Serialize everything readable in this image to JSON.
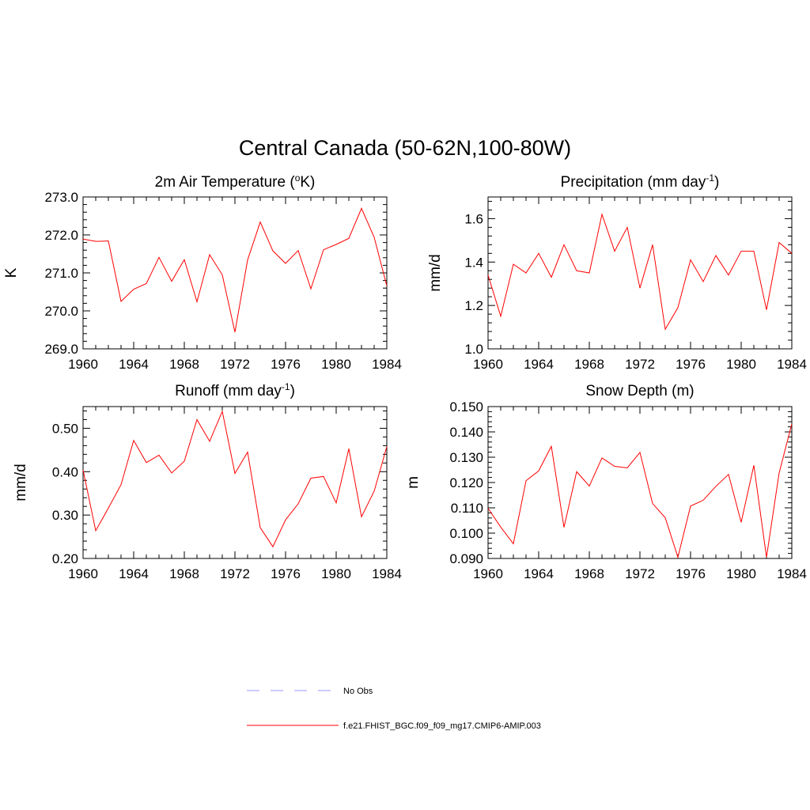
{
  "figure": {
    "title": "Central Canada (50-62N,100-80W)"
  },
  "chart_data": [
    {
      "type": "line",
      "title": "2m Air Temperature (",
      "title_sup": "o",
      "title_suffix": "K)",
      "ylabel": "K",
      "xlim": [
        1960,
        1984
      ],
      "ylim": [
        269.0,
        273.0
      ],
      "xticks": [
        "1960",
        "1964",
        "1968",
        "1972",
        "1976",
        "1980",
        "1984"
      ],
      "yticks": [
        "269.0",
        "270.0",
        "271.0",
        "272.0",
        "273.0"
      ],
      "grid": false,
      "series": [
        {
          "name": "f.e21.FHIST_BGC.f09_f09_mg17.CMIP6-AMIP.003",
          "color": "#ff0000",
          "x": [
            1960,
            1961,
            1962,
            1963,
            1964,
            1965,
            1966,
            1967,
            1968,
            1969,
            1970,
            1971,
            1972,
            1973,
            1974,
            1975,
            1976,
            1977,
            1978,
            1979,
            1980,
            1981,
            1982,
            1983,
            1984
          ],
          "y": [
            271.89,
            271.83,
            271.84,
            270.25,
            270.57,
            270.72,
            271.41,
            270.78,
            271.35,
            270.24,
            271.48,
            270.95,
            269.44,
            271.34,
            272.34,
            271.58,
            271.25,
            271.59,
            270.58,
            271.61,
            271.75,
            271.91,
            272.7,
            271.94,
            270.66
          ]
        }
      ]
    },
    {
      "type": "line",
      "title": "Precipitation (mm day",
      "title_sup": "-1",
      "title_suffix": ")",
      "ylabel": "mm/d",
      "xlim": [
        1960,
        1984
      ],
      "ylim": [
        1.0,
        1.7
      ],
      "xticks": [
        "1960",
        "1964",
        "1968",
        "1972",
        "1976",
        "1980",
        "1984"
      ],
      "yticks": [
        "1.0",
        "1.2",
        "1.4",
        "1.6"
      ],
      "grid": false,
      "series": [
        {
          "name": "f.e21.FHIST_BGC.f09_f09_mg17.CMIP6-AMIP.003",
          "color": "#ff0000",
          "x": [
            1960,
            1961,
            1962,
            1963,
            1964,
            1965,
            1966,
            1967,
            1968,
            1969,
            1970,
            1971,
            1972,
            1973,
            1974,
            1975,
            1976,
            1977,
            1978,
            1979,
            1980,
            1981,
            1982,
            1983,
            1984
          ],
          "y": [
            1.34,
            1.15,
            1.39,
            1.35,
            1.44,
            1.33,
            1.48,
            1.36,
            1.35,
            1.62,
            1.45,
            1.56,
            1.28,
            1.48,
            1.09,
            1.19,
            1.41,
            1.31,
            1.43,
            1.34,
            1.45,
            1.45,
            1.18,
            1.49,
            1.44
          ]
        }
      ]
    },
    {
      "type": "line",
      "title": "Runoff (mm day",
      "title_sup": "-1",
      "title_suffix": ")",
      "ylabel": "mm/d",
      "xlim": [
        1960,
        1984
      ],
      "ylim": [
        0.2,
        0.55
      ],
      "xticks": [
        "1960",
        "1964",
        "1968",
        "1972",
        "1976",
        "1980",
        "1984"
      ],
      "yticks": [
        "0.20",
        "0.30",
        "0.40",
        "0.50"
      ],
      "grid": false,
      "series": [
        {
          "name": "f.e21.FHIST_BGC.f09_f09_mg17.CMIP6-AMIP.003",
          "color": "#ff0000",
          "x": [
            1960,
            1961,
            1962,
            1963,
            1964,
            1965,
            1966,
            1967,
            1968,
            1969,
            1970,
            1971,
            1972,
            1973,
            1974,
            1975,
            1976,
            1977,
            1978,
            1979,
            1980,
            1981,
            1982,
            1983,
            1984
          ],
          "y": [
            0.404,
            0.264,
            0.316,
            0.37,
            0.472,
            0.421,
            0.438,
            0.397,
            0.424,
            0.52,
            0.47,
            0.539,
            0.396,
            0.445,
            0.271,
            0.227,
            0.289,
            0.326,
            0.385,
            0.389,
            0.328,
            0.453,
            0.296,
            0.355,
            0.458
          ]
        }
      ]
    },
    {
      "type": "line",
      "title": "Snow Depth (m)",
      "title_sup": "",
      "title_suffix": "",
      "ylabel": "m",
      "xlim": [
        1960,
        1984
      ],
      "ylim": [
        0.09,
        0.15
      ],
      "xticks": [
        "1960",
        "1964",
        "1968",
        "1972",
        "1976",
        "1980",
        "1984"
      ],
      "yticks": [
        "0.090",
        "0.100",
        "0.110",
        "0.120",
        "0.130",
        "0.140",
        "0.150"
      ],
      "grid": false,
      "series": [
        {
          "name": "f.e21.FHIST_BGC.f09_f09_mg17.CMIP6-AMIP.003",
          "color": "#ff0000",
          "x": [
            1960,
            1961,
            1962,
            1963,
            1964,
            1965,
            1966,
            1967,
            1968,
            1969,
            1970,
            1971,
            1972,
            1973,
            1974,
            1975,
            1976,
            1977,
            1978,
            1979,
            1980,
            1981,
            1982,
            1983,
            1984
          ],
          "y": [
            0.1098,
            0.1024,
            0.0958,
            0.1207,
            0.1246,
            0.1343,
            0.1023,
            0.1243,
            0.1186,
            0.1297,
            0.1264,
            0.1258,
            0.1319,
            0.1117,
            0.1061,
            0.0905,
            0.1107,
            0.113,
            0.1185,
            0.1232,
            0.1043,
            0.1268,
            0.0905,
            0.1238,
            0.1432
          ]
        }
      ]
    }
  ],
  "legend": {
    "placement": "bottom-center",
    "items": [
      {
        "label": "No Obs",
        "color": "#9999ff",
        "style": "dashed"
      },
      {
        "label": "f.e21.FHIST_BGC.f09_f09_mg17.CMIP6-AMIP.003",
        "color": "#ff0000",
        "style": "solid"
      }
    ]
  }
}
